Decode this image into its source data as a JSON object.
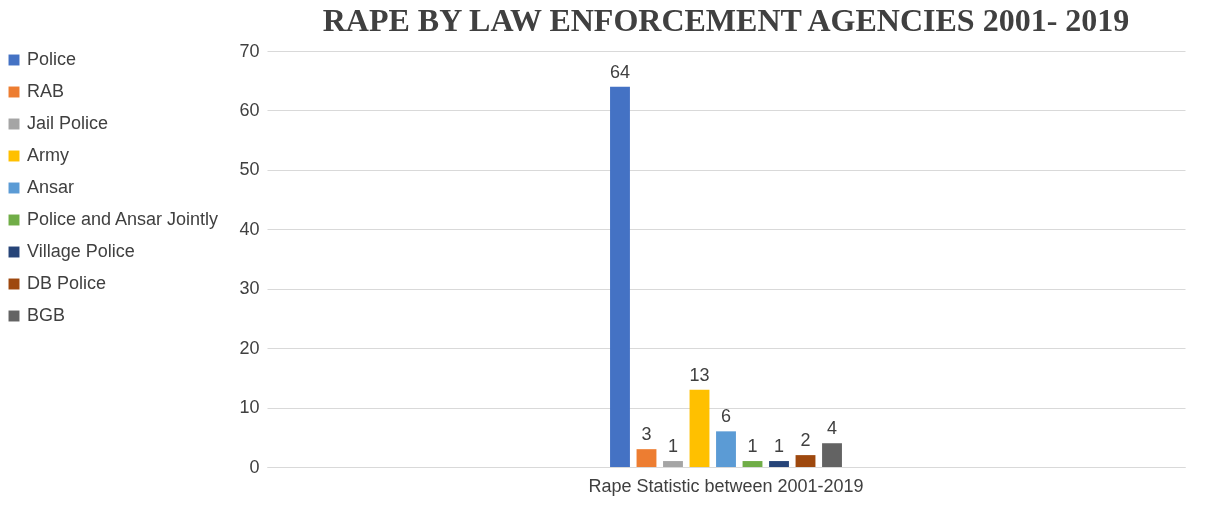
{
  "chart_data": {
    "type": "bar",
    "title": "RAPE BY LAW ENFORCEMENT AGENCIES 2001- 2019",
    "categories": [
      "Rape Statistic between 2001-2019"
    ],
    "series": [
      {
        "name": "Police",
        "color": "#4472c4",
        "values": [
          64
        ]
      },
      {
        "name": "RAB",
        "color": "#ed7d31",
        "values": [
          3
        ]
      },
      {
        "name": "Jail Police",
        "color": "#a5a5a5",
        "values": [
          1
        ]
      },
      {
        "name": "Army",
        "color": "#ffc000",
        "values": [
          13
        ]
      },
      {
        "name": "Ansar",
        "color": "#5b9bd5",
        "values": [
          6
        ]
      },
      {
        "name": "Police and Ansar Jointly",
        "color": "#70ad47",
        "values": [
          1
        ]
      },
      {
        "name": "Village Police",
        "color": "#264478",
        "values": [
          1
        ]
      },
      {
        "name": "DB Police",
        "color": "#9e480e",
        "values": [
          2
        ]
      },
      {
        "name": "BGB",
        "color": "#636363",
        "values": [
          4
        ]
      }
    ],
    "ylim": [
      0,
      70
    ],
    "yticks": [
      0,
      10,
      20,
      30,
      40,
      50,
      60,
      70
    ],
    "grid": "y",
    "legend": "left",
    "data_labels": true
  }
}
